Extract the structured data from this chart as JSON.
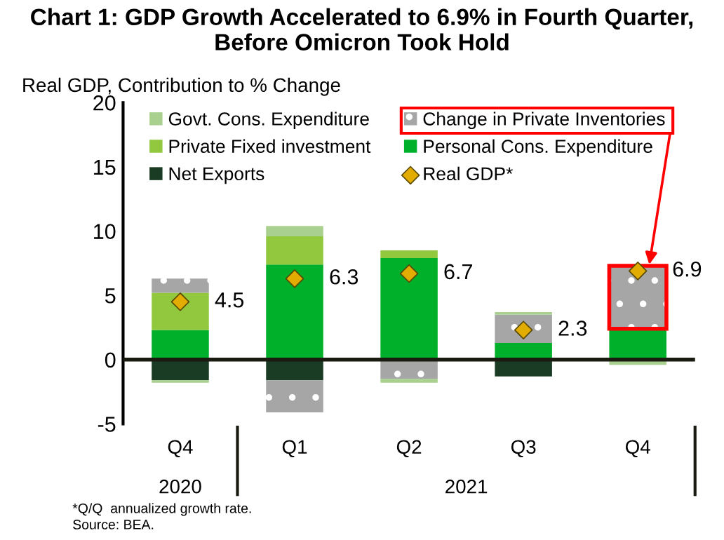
{
  "chart_data": {
    "type": "bar",
    "stacked": true,
    "title": "Chart 1: GDP Growth Accelerated to 6.9% in Fourth Quarter,\nBefore Omicron Took Hold",
    "ylabel": "Real GDP, Contribution to % Change",
    "categories": [
      "Q4",
      "Q1",
      "Q2",
      "Q3",
      "Q4"
    ],
    "series": [
      {
        "name": "Personal Cons. Expenditure",
        "color": "#00b02a",
        "values": [
          2.3,
          7.4,
          7.9,
          1.3,
          2.4
        ]
      },
      {
        "name": "Net Exports",
        "color": "#1a3c24",
        "values": [
          -1.6,
          -1.6,
          0,
          -1.3,
          0
        ]
      },
      {
        "name": "Private Fixed investment",
        "color": "#92c83e",
        "values": [
          2.9,
          2.2,
          0.6,
          0,
          0
        ]
      },
      {
        "name": "Change in Private Inventories",
        "color": "#a6a6a6",
        "values": [
          1.1,
          -2.5,
          -1.5,
          2.2,
          4.9
        ]
      },
      {
        "name": "Govt. Cons. Expenditure",
        "color": "#a9d08e",
        "values": [
          -0.2,
          0.8,
          -0.3,
          0.2,
          -0.4
        ]
      },
      {
        "name": "Real GDP*",
        "type": "scatter",
        "color": "#e2ac00",
        "marker": "diamond",
        "values": [
          4.5,
          6.3,
          6.7,
          2.3,
          6.9
        ],
        "value_labels": [
          "4.5",
          "6.3",
          "6.7",
          "2.3",
          "6.9"
        ]
      }
    ],
    "ref_lines": [
      {
        "axis": "y",
        "value": 0,
        "color": "#1a1a10"
      }
    ],
    "ylim": [
      -5,
      20
    ],
    "yticks": [
      -5,
      0,
      5,
      10,
      15,
      20
    ],
    "grid": false,
    "legend": "top left",
    "annotations": [
      "2020",
      "2021",
      "*Q/Q  annualized growth rate.",
      "Source: BEA."
    ]
  }
}
